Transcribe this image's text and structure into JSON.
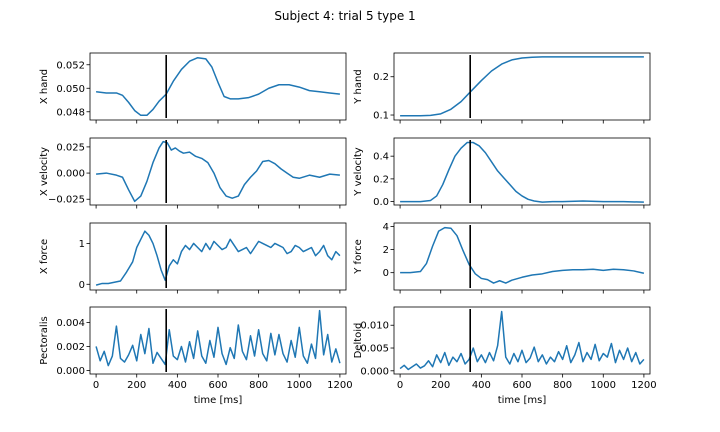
{
  "figure": {
    "title": "Subject 4: trial 5 type 1",
    "line_color": "#1f77b4",
    "marker_color": "#000000"
  },
  "chart_data": [
    {
      "type": "line",
      "ylabel": "X hand",
      "xlabel": "",
      "xlim": [
        -30,
        1230
      ],
      "ylim": [
        0.0473,
        0.053
      ],
      "xticks": [
        0,
        200,
        400,
        600,
        800,
        1000,
        1200
      ],
      "show_xtick_labels": false,
      "yticks": [
        0.048,
        0.05,
        0.052
      ],
      "ytick_labels": [
        "0.048",
        "0.050",
        "0.052"
      ],
      "marker_x": 345,
      "series": [
        {
          "x": [
            0,
            50,
            100,
            130,
            160,
            190,
            220,
            250,
            280,
            310,
            345,
            380,
            420,
            460,
            500,
            540,
            570,
            600,
            630,
            660,
            700,
            750,
            800,
            850,
            900,
            950,
            1000,
            1050,
            1100,
            1150,
            1200
          ],
          "y": [
            0.0497,
            0.0496,
            0.0496,
            0.0494,
            0.0488,
            0.0481,
            0.0477,
            0.0477,
            0.0482,
            0.0489,
            0.0495,
            0.0506,
            0.0516,
            0.0523,
            0.0526,
            0.0525,
            0.0518,
            0.0505,
            0.0493,
            0.0491,
            0.0491,
            0.0492,
            0.0495,
            0.05,
            0.0503,
            0.0503,
            0.0501,
            0.0498,
            0.0497,
            0.0496,
            0.0495
          ]
        }
      ]
    },
    {
      "type": "line",
      "ylabel": "Y hand",
      "xlabel": "",
      "xlim": [
        -30,
        1230
      ],
      "ylim": [
        0.087,
        0.262
      ],
      "xticks": [
        0,
        200,
        400,
        600,
        800,
        1000,
        1200
      ],
      "show_xtick_labels": false,
      "yticks": [
        0.1,
        0.2
      ],
      "ytick_labels": [
        "0.1",
        "0.2"
      ],
      "marker_x": 345,
      "series": [
        {
          "x": [
            0,
            50,
            100,
            150,
            200,
            250,
            300,
            345,
            400,
            450,
            500,
            550,
            600,
            650,
            700,
            800,
            900,
            1000,
            1100,
            1200
          ],
          "y": [
            0.098,
            0.098,
            0.098,
            0.099,
            0.103,
            0.115,
            0.135,
            0.16,
            0.19,
            0.215,
            0.233,
            0.244,
            0.249,
            0.251,
            0.252,
            0.252,
            0.252,
            0.252,
            0.252,
            0.252
          ]
        }
      ]
    },
    {
      "type": "line",
      "ylabel": "X velocity",
      "xlabel": "",
      "xlim": [
        -30,
        1230
      ],
      "ylim": [
        -0.0305,
        0.0335
      ],
      "xticks": [
        0,
        200,
        400,
        600,
        800,
        1000,
        1200
      ],
      "show_xtick_labels": false,
      "yticks": [
        -0.025,
        0.0,
        0.025
      ],
      "ytick_labels": [
        "−0.025",
        "0.000",
        "0.025"
      ],
      "marker_x": 345,
      "series": [
        {
          "x": [
            0,
            50,
            100,
            130,
            160,
            190,
            220,
            250,
            280,
            310,
            330,
            350,
            370,
            390,
            410,
            430,
            460,
            490,
            520,
            550,
            580,
            610,
            640,
            670,
            700,
            730,
            760,
            790,
            820,
            850,
            880,
            910,
            940,
            970,
            1000,
            1050,
            1100,
            1150,
            1200
          ],
          "y": [
            -0.001,
            0.0,
            -0.002,
            -0.004,
            -0.016,
            -0.027,
            -0.022,
            -0.008,
            0.01,
            0.024,
            0.03,
            0.029,
            0.022,
            0.024,
            0.021,
            0.019,
            0.02,
            0.016,
            0.014,
            0.01,
            0.0,
            -0.014,
            -0.022,
            -0.024,
            -0.022,
            -0.011,
            -0.004,
            0.002,
            0.011,
            0.012,
            0.009,
            0.004,
            0.0,
            -0.004,
            -0.005,
            -0.002,
            -0.004,
            -0.001,
            -0.002
          ]
        }
      ]
    },
    {
      "type": "line",
      "ylabel": "Y velocity",
      "xlabel": "",
      "xlim": [
        -30,
        1230
      ],
      "ylim": [
        -0.03,
        0.56
      ],
      "xticks": [
        0,
        200,
        400,
        600,
        800,
        1000,
        1200
      ],
      "show_xtick_labels": false,
      "yticks": [
        0.0,
        0.2,
        0.4
      ],
      "ytick_labels": [
        "0.0",
        "0.2",
        "0.4"
      ],
      "marker_x": 345,
      "series": [
        {
          "x": [
            0,
            50,
            100,
            150,
            180,
            210,
            240,
            270,
            300,
            330,
            360,
            390,
            420,
            450,
            480,
            510,
            540,
            570,
            600,
            630,
            660,
            700,
            750,
            800,
            900,
            1000,
            1100,
            1200
          ],
          "y": [
            0.0,
            0.0,
            0.0,
            0.01,
            0.05,
            0.15,
            0.28,
            0.4,
            0.47,
            0.52,
            0.52,
            0.49,
            0.43,
            0.35,
            0.27,
            0.21,
            0.15,
            0.09,
            0.05,
            0.02,
            0.005,
            -0.005,
            0.0,
            0.0,
            0.005,
            0.0,
            0.0,
            -0.005
          ]
        }
      ]
    },
    {
      "type": "line",
      "ylabel": "X force",
      "xlabel": "",
      "xlim": [
        -30,
        1230
      ],
      "ylim": [
        -0.14,
        1.5
      ],
      "xticks": [
        0,
        200,
        400,
        600,
        800,
        1000,
        1200
      ],
      "show_xtick_labels": false,
      "yticks": [
        0,
        1
      ],
      "ytick_labels": [
        "0",
        "1"
      ],
      "marker_x": 345,
      "series": [
        {
          "x": [
            0,
            30,
            60,
            90,
            120,
            150,
            180,
            200,
            220,
            240,
            260,
            280,
            300,
            320,
            340,
            360,
            380,
            400,
            420,
            440,
            460,
            480,
            500,
            520,
            540,
            560,
            580,
            600,
            620,
            640,
            660,
            680,
            700,
            720,
            740,
            760,
            780,
            800,
            820,
            840,
            860,
            880,
            900,
            920,
            940,
            960,
            980,
            1000,
            1020,
            1040,
            1060,
            1080,
            1100,
            1120,
            1140,
            1160,
            1180,
            1200
          ],
          "y": [
            -0.02,
            0.02,
            0.02,
            0.05,
            0.08,
            0.3,
            0.55,
            0.9,
            1.1,
            1.3,
            1.2,
            1.0,
            0.7,
            0.35,
            0.1,
            0.45,
            0.6,
            0.5,
            0.8,
            0.95,
            0.85,
            1.0,
            0.9,
            0.8,
            1.0,
            0.85,
            1.05,
            0.95,
            0.85,
            0.9,
            1.1,
            0.95,
            0.8,
            0.85,
            0.9,
            0.75,
            0.9,
            1.05,
            1.0,
            0.95,
            0.9,
            1.0,
            0.95,
            0.9,
            0.75,
            0.8,
            0.95,
            0.9,
            0.8,
            0.85,
            0.9,
            0.7,
            0.8,
            0.95,
            0.7,
            0.6,
            0.8,
            0.7
          ]
        }
      ]
    },
    {
      "type": "line",
      "ylabel": "Y force",
      "xlabel": "",
      "xlim": [
        -30,
        1230
      ],
      "ylim": [
        -1.5,
        4.3
      ],
      "xticks": [
        0,
        200,
        400,
        600,
        800,
        1000,
        1200
      ],
      "show_xtick_labels": false,
      "yticks": [
        0,
        2,
        4
      ],
      "ytick_labels": [
        "0",
        "2",
        "4"
      ],
      "marker_x": 345,
      "series": [
        {
          "x": [
            0,
            50,
            100,
            130,
            160,
            190,
            220,
            250,
            280,
            310,
            340,
            370,
            400,
            430,
            460,
            490,
            520,
            550,
            600,
            650,
            700,
            750,
            800,
            850,
            900,
            950,
            1000,
            1050,
            1100,
            1150,
            1200
          ],
          "y": [
            0.0,
            0.0,
            0.1,
            0.8,
            2.3,
            3.6,
            3.9,
            3.85,
            3.2,
            1.9,
            0.7,
            -0.1,
            -0.5,
            -0.6,
            -0.9,
            -0.7,
            -0.9,
            -0.65,
            -0.4,
            -0.2,
            -0.1,
            0.1,
            0.2,
            0.25,
            0.25,
            0.3,
            0.2,
            0.3,
            0.25,
            0.15,
            -0.05
          ]
        }
      ]
    },
    {
      "type": "line",
      "ylabel": "Pectoralis",
      "xlabel": "time [ms]",
      "xlim": [
        -30,
        1230
      ],
      "ylim": [
        -0.0003,
        0.0053
      ],
      "xticks": [
        0,
        200,
        400,
        600,
        800,
        1000,
        1200
      ],
      "show_xtick_labels": true,
      "xtick_labels": [
        "0",
        "200",
        "400",
        "600",
        "800",
        "1000",
        "1200"
      ],
      "yticks": [
        0.0,
        0.002,
        0.004
      ],
      "ytick_labels": [
        "0.000",
        "0.002",
        "0.004"
      ],
      "marker_x": 345,
      "series": [
        {
          "x": [
            0,
            20,
            40,
            60,
            80,
            100,
            120,
            140,
            160,
            180,
            200,
            220,
            240,
            260,
            280,
            300,
            320,
            340,
            360,
            380,
            400,
            420,
            440,
            460,
            480,
            500,
            520,
            540,
            560,
            580,
            600,
            620,
            640,
            660,
            680,
            700,
            720,
            740,
            760,
            780,
            800,
            820,
            840,
            860,
            880,
            900,
            920,
            940,
            960,
            980,
            1000,
            1020,
            1040,
            1060,
            1080,
            1100,
            1120,
            1140,
            1160,
            1180,
            1200
          ],
          "y": [
            0.002,
            0.0008,
            0.0016,
            0.0004,
            0.0012,
            0.0037,
            0.001,
            0.0007,
            0.0013,
            0.0021,
            0.0008,
            0.003,
            0.0014,
            0.0035,
            0.0006,
            0.0015,
            0.001,
            0.0005,
            0.0034,
            0.0012,
            0.0009,
            0.002,
            0.0007,
            0.0024,
            0.001,
            0.0033,
            0.0012,
            0.0006,
            0.0025,
            0.0011,
            0.0036,
            0.0014,
            0.0005,
            0.0019,
            0.001,
            0.0038,
            0.0016,
            0.0009,
            0.0029,
            0.0012,
            0.0034,
            0.0014,
            0.0008,
            0.0031,
            0.0013,
            0.003,
            0.0014,
            0.0007,
            0.0025,
            0.0011,
            0.0036,
            0.0012,
            0.0006,
            0.0022,
            0.001,
            0.005,
            0.0013,
            0.003,
            0.0007,
            0.0018,
            0.0006
          ]
        }
      ]
    },
    {
      "type": "line",
      "ylabel": "Deltoid",
      "xlabel": "time [ms]",
      "xlim": [
        -30,
        1230
      ],
      "ylim": [
        -0.0007,
        0.014
      ],
      "xticks": [
        0,
        200,
        400,
        600,
        800,
        1000,
        1200
      ],
      "show_xtick_labels": true,
      "xtick_labels": [
        "0",
        "200",
        "400",
        "600",
        "800",
        "1000",
        "1200"
      ],
      "yticks": [
        0.0,
        0.005,
        0.01
      ],
      "ytick_labels": [
        "0.000",
        "0.005",
        "0.010"
      ],
      "marker_x": 345,
      "series": [
        {
          "x": [
            0,
            20,
            40,
            60,
            80,
            100,
            120,
            140,
            160,
            180,
            200,
            220,
            240,
            260,
            280,
            300,
            320,
            340,
            360,
            380,
            400,
            420,
            440,
            460,
            480,
            500,
            520,
            540,
            560,
            580,
            600,
            620,
            640,
            660,
            680,
            700,
            720,
            740,
            760,
            780,
            800,
            820,
            840,
            860,
            880,
            900,
            920,
            940,
            960,
            980,
            1000,
            1020,
            1040,
            1060,
            1080,
            1100,
            1120,
            1140,
            1160,
            1180,
            1200
          ],
          "y": [
            0.0005,
            0.0012,
            0.0003,
            0.0009,
            0.0015,
            0.0006,
            0.0011,
            0.0022,
            0.0009,
            0.0035,
            0.0018,
            0.004,
            0.0012,
            0.003,
            0.002,
            0.0038,
            0.0015,
            0.0025,
            0.005,
            0.002,
            0.0035,
            0.0018,
            0.004,
            0.0022,
            0.0055,
            0.013,
            0.003,
            0.0015,
            0.0038,
            0.002,
            0.0045,
            0.0018,
            0.0028,
            0.0052,
            0.002,
            0.0035,
            0.0015,
            0.003,
            0.002,
            0.0042,
            0.0025,
            0.0055,
            0.0018,
            0.0035,
            0.0062,
            0.002,
            0.004,
            0.0025,
            0.0058,
            0.0022,
            0.0038,
            0.003,
            0.006,
            0.0018,
            0.0045,
            0.0025,
            0.005,
            0.002,
            0.004,
            0.0015,
            0.0025
          ]
        }
      ]
    }
  ]
}
